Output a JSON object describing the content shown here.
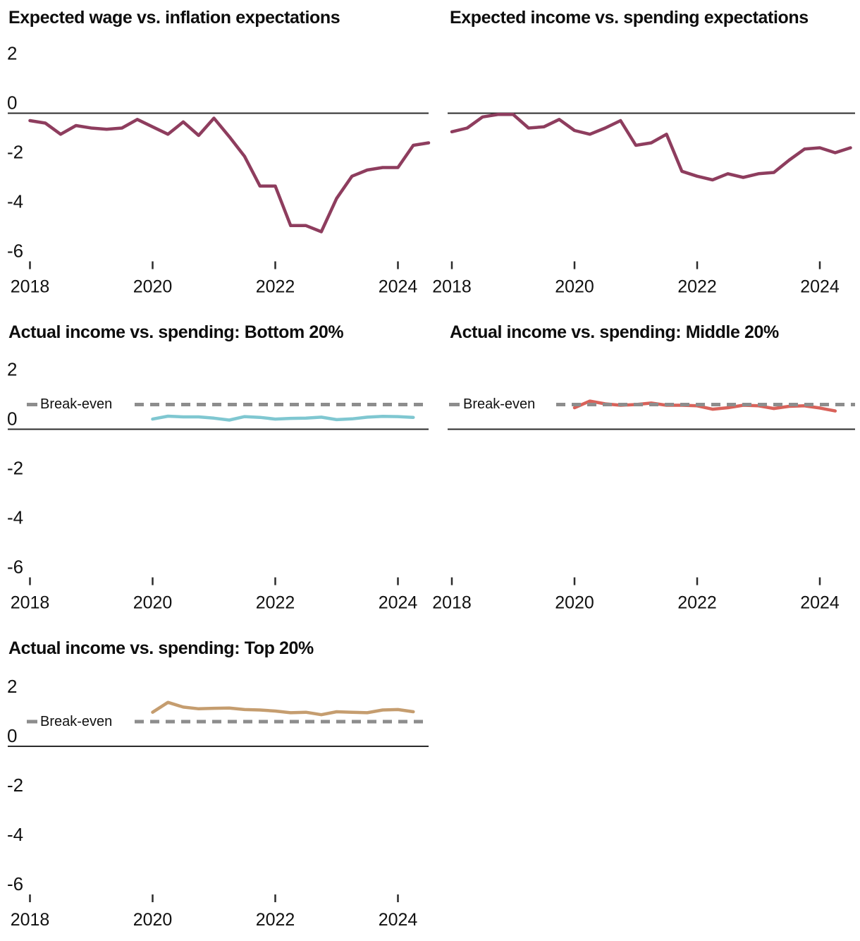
{
  "style": {
    "background": "#ffffff",
    "axis_color": "#2b2b2b",
    "text_color": "#111111",
    "breakeven_dash_color": "#8d8d8d",
    "maroon": "#8e3d5e",
    "blue": "#7fc7d1",
    "red": "#d9625a",
    "tan": "#c59d6f"
  },
  "chart_data": [
    {
      "type": "line",
      "title": "Expected wage vs. inflation expectations",
      "x_tick_labels": [
        "2018",
        "2020",
        "2022",
        "2024"
      ],
      "y_tick_labels": [
        "2",
        "0",
        "-2",
        "-4",
        "-6"
      ],
      "ylim": [
        -6.6,
        2.4
      ],
      "grid": false,
      "legend": "none",
      "frequency": "quarterly",
      "breakeven": null,
      "series": [
        {
          "name": "expected-wage-minus-inflation",
          "color": "#8e3d5e",
          "x_start": 2018.0,
          "x_step": 0.25,
          "values": [
            -0.3,
            -0.4,
            -0.85,
            -0.5,
            -0.6,
            -0.65,
            -0.6,
            -0.25,
            -0.55,
            -0.85,
            -0.35,
            -0.9,
            -0.2,
            -0.95,
            -1.75,
            -2.95,
            -2.95,
            -4.55,
            -4.55,
            -4.8,
            -3.45,
            -2.55,
            -2.3,
            -2.2,
            -2.2,
            -1.3,
            -1.2
          ]
        }
      ]
    },
    {
      "type": "line",
      "title": "Expected income vs. spending expectations",
      "x_tick_labels": [
        "2018",
        "2020",
        "2022",
        "2024"
      ],
      "y_tick_labels": [],
      "ylim": [
        -6.6,
        2.4
      ],
      "grid": false,
      "legend": "none",
      "frequency": "quarterly",
      "breakeven": null,
      "series": [
        {
          "name": "expected-income-minus-spending",
          "color": "#8e3d5e",
          "x_start": 2018.0,
          "x_step": 0.25,
          "values": [
            -0.75,
            -0.6,
            -0.15,
            -0.05,
            -0.05,
            -0.6,
            -0.55,
            -0.25,
            -0.7,
            -0.85,
            -0.6,
            -0.3,
            -1.3,
            -1.2,
            -0.85,
            -2.35,
            -2.55,
            -2.7,
            -2.45,
            -2.6,
            -2.45,
            -2.4,
            -1.9,
            -1.45,
            -1.4,
            -1.6,
            -1.4
          ]
        }
      ]
    },
    {
      "type": "line",
      "title": "Actual income vs. spending: Bottom 20%",
      "x_tick_labels": [
        "2018",
        "2020",
        "2022",
        "2024"
      ],
      "y_tick_labels": [
        "2",
        "0",
        "-2",
        "-4",
        "-6"
      ],
      "ylim": [
        -6.6,
        2.4
      ],
      "grid": false,
      "legend": "none",
      "frequency": "quarterly",
      "breakeven": {
        "label": "Break-even",
        "value": 1
      },
      "series": [
        {
          "name": "actual-income-vs-spending-bottom-20",
          "color": "#7fc7d1",
          "x_start": 2020.0,
          "x_step": 0.25,
          "values": [
            0.41,
            0.53,
            0.5,
            0.5,
            0.45,
            0.37,
            0.51,
            0.48,
            0.41,
            0.44,
            0.45,
            0.49,
            0.39,
            0.42,
            0.49,
            0.52,
            0.51,
            0.48
          ]
        }
      ]
    },
    {
      "type": "line",
      "title": "Actual income vs. spending: Middle 20%",
      "x_tick_labels": [
        "2018",
        "2020",
        "2022",
        "2024"
      ],
      "y_tick_labels": [],
      "ylim": [
        -6.6,
        2.4
      ],
      "grid": false,
      "legend": "none",
      "frequency": "quarterly",
      "breakeven": {
        "label": "Break-even",
        "value": 1
      },
      "series": [
        {
          "name": "actual-income-vs-spending-middle-20",
          "color": "#d9625a",
          "x_start": 2020.0,
          "x_step": 0.25,
          "values": [
            0.87,
            1.14,
            1.03,
            0.97,
            1.0,
            1.06,
            0.97,
            0.97,
            0.95,
            0.81,
            0.87,
            0.97,
            0.95,
            0.84,
            0.93,
            0.95,
            0.86,
            0.74
          ]
        }
      ]
    },
    {
      "type": "line",
      "title": "Actual income vs. spending: Top 20%",
      "x_tick_labels": [
        "2018",
        "2020",
        "2022",
        "2024"
      ],
      "y_tick_labels": [
        "2",
        "0",
        "-2",
        "-4",
        "-6"
      ],
      "ylim": [
        -6.6,
        2.4
      ],
      "grid": false,
      "legend": "none",
      "frequency": "quarterly",
      "breakeven": {
        "label": "Break-even",
        "value": 1
      },
      "series": [
        {
          "name": "actual-income-vs-spending-top-20",
          "color": "#c59d6f",
          "x_start": 2020.0,
          "x_step": 0.25,
          "values": [
            1.38,
            1.78,
            1.59,
            1.52,
            1.54,
            1.55,
            1.49,
            1.47,
            1.43,
            1.36,
            1.38,
            1.28,
            1.4,
            1.38,
            1.36,
            1.47,
            1.49,
            1.4
          ]
        }
      ]
    }
  ]
}
